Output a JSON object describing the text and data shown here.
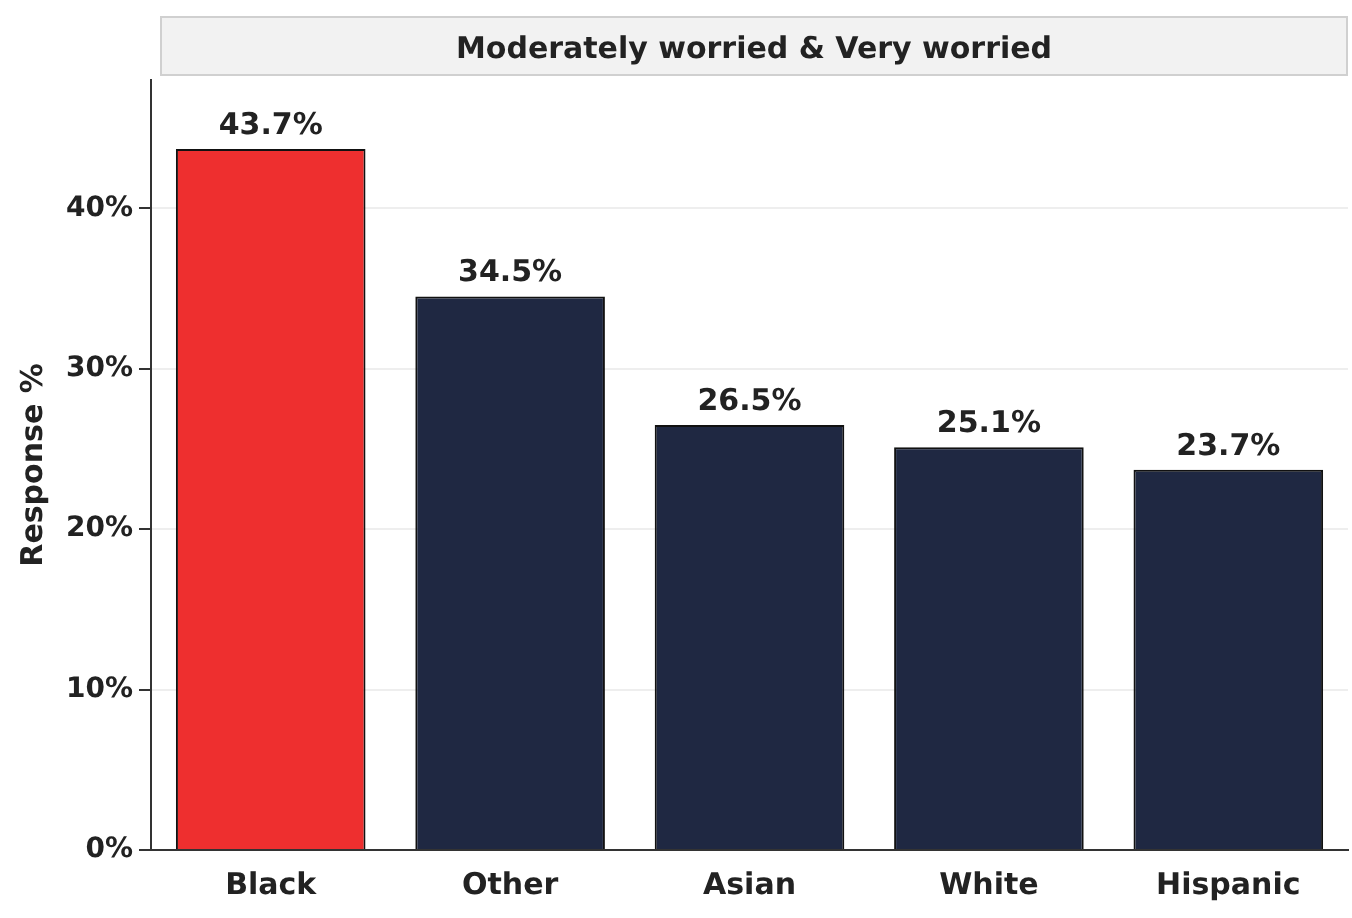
{
  "chart_data": {
    "type": "bar",
    "title": "Moderately worried & Very worried",
    "ylabel": "Response %",
    "categories": [
      "Black",
      "Other",
      "Asian",
      "White",
      "Hispanic"
    ],
    "values": [
      43.7,
      34.5,
      26.5,
      25.1,
      23.7
    ],
    "colors": [
      "#ee2f2f",
      "#1f2842",
      "#1f2842",
      "#1f2842",
      "#1f2842"
    ],
    "value_labels": [
      "43.7%",
      "34.5%",
      "26.5%",
      "25.1%",
      "23.7%"
    ],
    "ylim": [
      0,
      48
    ],
    "yticks": [
      {
        "value": 0,
        "label": "0%"
      },
      {
        "value": 10,
        "label": "10%"
      },
      {
        "value": 20,
        "label": "20%"
      },
      {
        "value": 30,
        "label": "30%"
      },
      {
        "value": 40,
        "label": "40%"
      }
    ],
    "grid": "y",
    "legend": false
  }
}
